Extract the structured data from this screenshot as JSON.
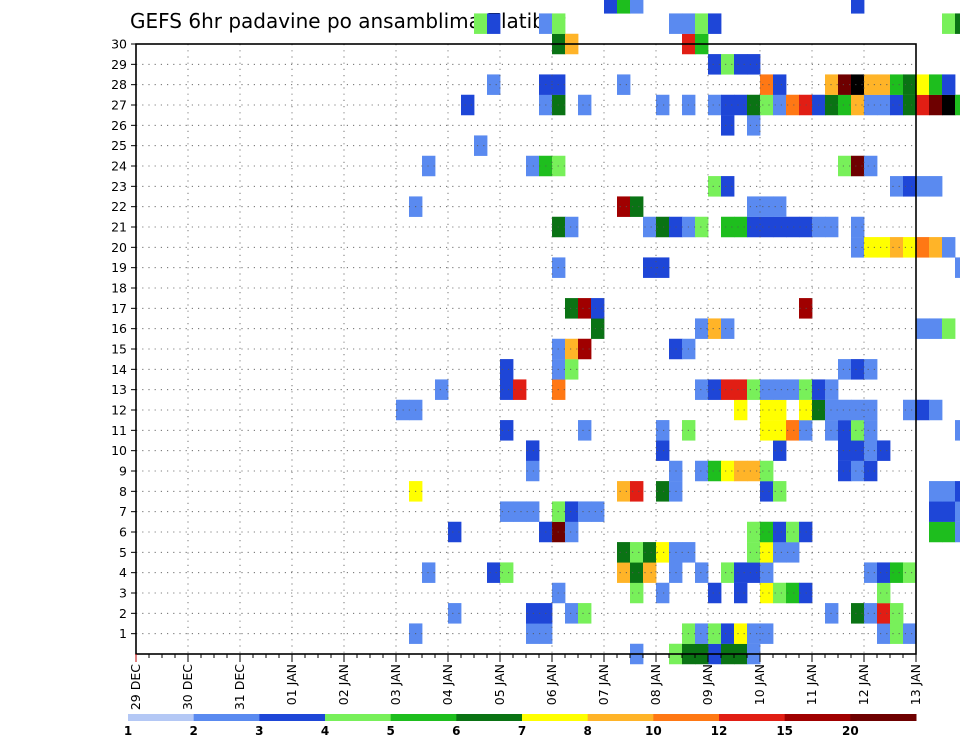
{
  "chart_data": {
    "type": "heatmap",
    "title": "GEFS 6hr padavine po ansamblima Zlatibor",
    "xlabel": "",
    "ylabel": "",
    "x_ticks": [
      "29 DEC",
      "30 DEC",
      "31 DEC",
      "01 JAN",
      "02 JAN",
      "03 JAN",
      "04 JAN",
      "05 JAN",
      "06 JAN",
      "07 JAN",
      "08 JAN",
      "09 JAN",
      "10 JAN",
      "11 JAN",
      "12 JAN",
      "13 JAN"
    ],
    "y_ticks": [
      1,
      2,
      3,
      4,
      5,
      6,
      7,
      8,
      9,
      10,
      11,
      12,
      13,
      14,
      15,
      16,
      17,
      18,
      19,
      20,
      21,
      22,
      23,
      24,
      25,
      26,
      27,
      28,
      29,
      30
    ],
    "x_range_days": [
      0,
      15
    ],
    "steps_per_day": 4,
    "y_range": [
      0,
      30
    ],
    "grid": true,
    "color_levels": [
      "1",
      "2",
      "3",
      "4",
      "5",
      "6",
      "7",
      "8",
      "10",
      "12",
      "15",
      "20"
    ],
    "palette": [
      "#b4c8f5",
      "#5a8af0",
      "#1e46d7",
      "#78f05a",
      "#1ebe1e",
      "#0a7314",
      "#ffff00",
      "#ffb428",
      "#ff7814",
      "#e11e14",
      "#a00000",
      "#6e0000"
    ],
    "cells": [
      [
        0,
        44,
        2
      ],
      [
        0,
        45,
        5
      ],
      [
        0,
        46,
        5
      ],
      [
        0,
        47,
        1
      ],
      [
        0,
        38,
        1
      ],
      [
        0,
        41,
        3
      ],
      [
        0,
        42,
        5
      ],
      [
        0,
        43,
        5
      ],
      [
        1,
        42,
        3
      ],
      [
        1,
        43,
        1
      ],
      [
        1,
        44,
        3
      ],
      [
        1,
        45,
        2
      ],
      [
        1,
        46,
        6
      ],
      [
        1,
        47,
        1
      ],
      [
        1,
        48,
        1
      ],
      [
        1,
        21,
        1
      ],
      [
        1,
        30,
        1
      ],
      [
        1,
        31,
        1
      ],
      [
        1,
        57,
        1
      ],
      [
        1,
        58,
        3
      ],
      [
        1,
        59,
        1
      ],
      [
        2,
        30,
        2
      ],
      [
        2,
        31,
        2
      ],
      [
        2,
        33,
        1
      ],
      [
        2,
        34,
        3
      ],
      [
        2,
        24,
        1
      ],
      [
        2,
        55,
        5
      ],
      [
        2,
        56,
        1
      ],
      [
        2,
        57,
        9
      ],
      [
        2,
        58,
        3
      ],
      [
        2,
        53,
        1
      ],
      [
        3,
        32,
        1
      ],
      [
        3,
        38,
        3
      ],
      [
        3,
        40,
        1
      ],
      [
        3,
        44,
        2
      ],
      [
        3,
        46,
        2
      ],
      [
        3,
        48,
        6
      ],
      [
        3,
        49,
        3
      ],
      [
        3,
        50,
        4
      ],
      [
        3,
        51,
        2
      ],
      [
        3,
        57,
        3
      ],
      [
        4,
        22,
        1
      ],
      [
        4,
        27,
        2
      ],
      [
        4,
        28,
        3
      ],
      [
        4,
        37,
        7
      ],
      [
        4,
        38,
        5
      ],
      [
        4,
        39,
        7
      ],
      [
        4,
        41,
        1
      ],
      [
        4,
        43,
        1
      ],
      [
        4,
        45,
        3
      ],
      [
        4,
        46,
        2
      ],
      [
        4,
        47,
        2
      ],
      [
        4,
        48,
        1
      ],
      [
        4,
        56,
        1
      ],
      [
        4,
        57,
        2
      ],
      [
        4,
        58,
        4
      ],
      [
        4,
        59,
        3
      ],
      [
        5,
        37,
        5
      ],
      [
        5,
        38,
        3
      ],
      [
        5,
        39,
        5
      ],
      [
        5,
        40,
        6
      ],
      [
        5,
        41,
        1
      ],
      [
        5,
        42,
        1
      ],
      [
        5,
        47,
        3
      ],
      [
        5,
        48,
        6
      ],
      [
        5,
        49,
        1
      ],
      [
        5,
        50,
        1
      ],
      [
        6,
        24,
        2
      ],
      [
        6,
        31,
        2
      ],
      [
        6,
        32,
        11
      ],
      [
        6,
        33,
        1
      ],
      [
        6,
        47,
        3
      ],
      [
        6,
        48,
        4
      ],
      [
        6,
        49,
        2
      ],
      [
        6,
        50,
        3
      ],
      [
        6,
        51,
        2
      ],
      [
        6,
        61,
        4
      ],
      [
        6,
        62,
        4
      ],
      [
        6,
        63,
        1
      ],
      [
        6,
        64,
        1
      ],
      [
        6,
        65,
        2
      ],
      [
        6,
        66,
        3
      ],
      [
        6,
        67,
        1
      ],
      [
        6,
        68,
        1
      ],
      [
        7,
        28,
        1
      ],
      [
        7,
        29,
        1
      ],
      [
        7,
        30,
        1
      ],
      [
        7,
        32,
        3
      ],
      [
        7,
        33,
        2
      ],
      [
        7,
        34,
        1
      ],
      [
        7,
        35,
        1
      ],
      [
        7,
        61,
        2
      ],
      [
        7,
        62,
        2
      ],
      [
        7,
        63,
        1
      ],
      [
        7,
        64,
        2
      ],
      [
        8,
        21,
        6
      ],
      [
        8,
        37,
        7
      ],
      [
        8,
        38,
        9
      ],
      [
        8,
        40,
        5
      ],
      [
        8,
        41,
        1
      ],
      [
        8,
        48,
        2
      ],
      [
        8,
        49,
        3
      ],
      [
        8,
        61,
        1
      ],
      [
        8,
        62,
        1
      ],
      [
        8,
        63,
        2
      ],
      [
        9,
        30,
        1
      ],
      [
        9,
        41,
        1
      ],
      [
        9,
        43,
        1
      ],
      [
        9,
        44,
        4
      ],
      [
        9,
        45,
        6
      ],
      [
        9,
        46,
        7
      ],
      [
        9,
        47,
        7
      ],
      [
        9,
        48,
        3
      ],
      [
        9,
        54,
        2
      ],
      [
        9,
        55,
        1
      ],
      [
        9,
        56,
        2
      ],
      [
        10,
        30,
        2
      ],
      [
        10,
        40,
        2
      ],
      [
        10,
        49,
        2
      ],
      [
        10,
        54,
        2
      ],
      [
        10,
        55,
        2
      ],
      [
        10,
        56,
        1
      ],
      [
        10,
        57,
        2
      ],
      [
        11,
        28,
        2
      ],
      [
        11,
        34,
        1
      ],
      [
        11,
        40,
        1
      ],
      [
        11,
        42,
        3
      ],
      [
        11,
        48,
        6
      ],
      [
        11,
        49,
        6
      ],
      [
        11,
        50,
        8
      ],
      [
        11,
        51,
        1
      ],
      [
        11,
        53,
        1
      ],
      [
        11,
        54,
        2
      ],
      [
        11,
        55,
        3
      ],
      [
        11,
        56,
        1
      ],
      [
        11,
        63,
        1
      ],
      [
        12,
        20,
        1
      ],
      [
        12,
        21,
        1
      ],
      [
        12,
        46,
        6
      ],
      [
        12,
        48,
        6
      ],
      [
        12,
        49,
        6
      ],
      [
        12,
        51,
        6
      ],
      [
        12,
        52,
        5
      ],
      [
        12,
        53,
        1
      ],
      [
        12,
        54,
        1
      ],
      [
        12,
        55,
        1
      ],
      [
        12,
        56,
        1
      ],
      [
        12,
        59,
        1
      ],
      [
        12,
        60,
        2
      ],
      [
        12,
        61,
        1
      ],
      [
        13,
        23,
        1
      ],
      [
        13,
        28,
        2
      ],
      [
        13,
        29,
        9
      ],
      [
        13,
        32,
        8
      ],
      [
        13,
        43,
        1
      ],
      [
        13,
        44,
        2
      ],
      [
        13,
        45,
        9
      ],
      [
        13,
        46,
        9
      ],
      [
        13,
        47,
        3
      ],
      [
        13,
        48,
        1
      ],
      [
        13,
        49,
        1
      ],
      [
        13,
        50,
        1
      ],
      [
        13,
        51,
        3
      ],
      [
        13,
        52,
        2
      ],
      [
        13,
        53,
        1
      ],
      [
        14,
        28,
        2
      ],
      [
        14,
        32,
        1
      ],
      [
        14,
        33,
        3
      ],
      [
        14,
        54,
        1
      ],
      [
        14,
        55,
        2
      ],
      [
        14,
        56,
        1
      ],
      [
        15,
        32,
        1
      ],
      [
        15,
        33,
        7
      ],
      [
        15,
        34,
        10
      ],
      [
        15,
        41,
        2
      ],
      [
        15,
        42,
        1
      ],
      [
        16,
        35,
        5
      ],
      [
        16,
        43,
        1
      ],
      [
        16,
        44,
        7
      ],
      [
        16,
        45,
        1
      ],
      [
        16,
        60,
        1
      ],
      [
        16,
        61,
        1
      ],
      [
        16,
        62,
        3
      ],
      [
        17,
        33,
        5
      ],
      [
        17,
        34,
        10
      ],
      [
        17,
        35,
        2
      ],
      [
        17,
        51,
        10
      ],
      [
        18,
        73,
        2
      ],
      [
        18,
        74,
        10
      ],
      [
        19,
        32,
        1
      ],
      [
        19,
        39,
        2
      ],
      [
        19,
        40,
        2
      ],
      [
        19,
        63,
        1
      ],
      [
        20,
        55,
        1
      ],
      [
        20,
        56,
        6
      ],
      [
        20,
        57,
        6
      ],
      [
        20,
        58,
        7
      ],
      [
        20,
        59,
        6
      ],
      [
        20,
        60,
        8
      ],
      [
        20,
        61,
        7
      ],
      [
        20,
        62,
        1
      ],
      [
        20,
        64,
        1
      ],
      [
        20,
        65,
        5
      ],
      [
        20,
        66,
        12
      ],
      [
        20,
        67,
        1
      ],
      [
        21,
        32,
        5
      ],
      [
        21,
        33,
        1
      ],
      [
        21,
        39,
        1
      ],
      [
        21,
        40,
        5
      ],
      [
        21,
        41,
        2
      ],
      [
        21,
        42,
        1
      ],
      [
        21,
        43,
        3
      ],
      [
        21,
        45,
        4
      ],
      [
        21,
        46,
        4
      ],
      [
        21,
        47,
        2
      ],
      [
        21,
        48,
        2
      ],
      [
        21,
        49,
        2
      ],
      [
        21,
        50,
        2
      ],
      [
        21,
        51,
        2
      ],
      [
        21,
        52,
        1
      ],
      [
        21,
        53,
        1
      ],
      [
        21,
        55,
        1
      ],
      [
        22,
        21,
        1
      ],
      [
        22,
        37,
        10
      ],
      [
        22,
        38,
        5
      ],
      [
        22,
        47,
        1
      ],
      [
        22,
        48,
        1
      ],
      [
        22,
        49,
        1
      ],
      [
        23,
        44,
        3
      ],
      [
        23,
        45,
        2
      ],
      [
        23,
        58,
        1
      ],
      [
        23,
        59,
        2
      ],
      [
        23,
        60,
        1
      ],
      [
        23,
        61,
        1
      ],
      [
        24,
        22,
        1
      ],
      [
        24,
        30,
        1
      ],
      [
        24,
        31,
        4
      ],
      [
        24,
        32,
        3
      ],
      [
        24,
        54,
        3
      ],
      [
        24,
        55,
        11
      ],
      [
        24,
        56,
        1
      ],
      [
        25,
        26,
        1
      ],
      [
        26,
        45,
        2
      ],
      [
        26,
        47,
        1
      ],
      [
        27,
        25,
        2
      ],
      [
        27,
        31,
        1
      ],
      [
        27,
        32,
        5
      ],
      [
        27,
        34,
        1
      ],
      [
        27,
        40,
        1
      ],
      [
        27,
        42,
        1
      ],
      [
        27,
        44,
        1
      ],
      [
        27,
        45,
        2
      ],
      [
        27,
        46,
        2
      ],
      [
        27,
        47,
        5
      ],
      [
        27,
        48,
        3
      ],
      [
        27,
        49,
        1
      ],
      [
        27,
        50,
        8
      ],
      [
        27,
        51,
        9
      ],
      [
        27,
        52,
        2
      ],
      [
        27,
        53,
        5
      ],
      [
        27,
        54,
        4
      ],
      [
        27,
        55,
        7
      ],
      [
        27,
        56,
        1
      ],
      [
        27,
        57,
        1
      ],
      [
        27,
        58,
        2
      ],
      [
        27,
        59,
        5
      ],
      [
        27,
        60,
        9
      ],
      [
        27,
        61,
        11
      ],
      [
        27,
        62,
        12
      ],
      [
        27,
        63,
        4
      ],
      [
        27,
        74,
        2
      ],
      [
        28,
        27,
        1
      ],
      [
        28,
        31,
        2
      ],
      [
        28,
        32,
        2
      ],
      [
        28,
        37,
        1
      ],
      [
        28,
        48,
        8
      ],
      [
        28,
        49,
        2
      ],
      [
        28,
        53,
        7
      ],
      [
        28,
        54,
        11
      ],
      [
        28,
        55,
        12
      ],
      [
        28,
        56,
        7
      ],
      [
        28,
        57,
        7
      ],
      [
        28,
        58,
        4
      ],
      [
        28,
        59,
        5
      ],
      [
        28,
        60,
        6
      ],
      [
        28,
        61,
        4
      ],
      [
        28,
        62,
        2
      ],
      [
        29,
        44,
        2
      ],
      [
        29,
        45,
        3
      ],
      [
        29,
        46,
        2
      ],
      [
        29,
        47,
        2
      ],
      [
        30,
        32,
        5
      ],
      [
        30,
        33,
        7
      ],
      [
        30,
        42,
        9
      ],
      [
        30,
        43,
        4
      ],
      [
        30,
        67,
        1
      ],
      [
        30,
        68,
        4
      ],
      [
        30,
        69,
        1
      ],
      [
        31,
        26,
        3
      ],
      [
        31,
        27,
        2
      ],
      [
        31,
        31,
        1
      ],
      [
        31,
        32,
        3
      ],
      [
        31,
        41,
        1
      ],
      [
        31,
        42,
        1
      ],
      [
        31,
        43,
        3
      ],
      [
        31,
        44,
        2
      ],
      [
        31,
        62,
        3
      ],
      [
        31,
        63,
        5
      ],
      [
        31,
        64,
        10
      ],
      [
        32,
        36,
        2
      ],
      [
        32,
        37,
        4
      ],
      [
        32,
        38,
        1
      ],
      [
        32,
        55,
        2
      ],
      [
        32,
        74,
        2
      ]
    ]
  }
}
